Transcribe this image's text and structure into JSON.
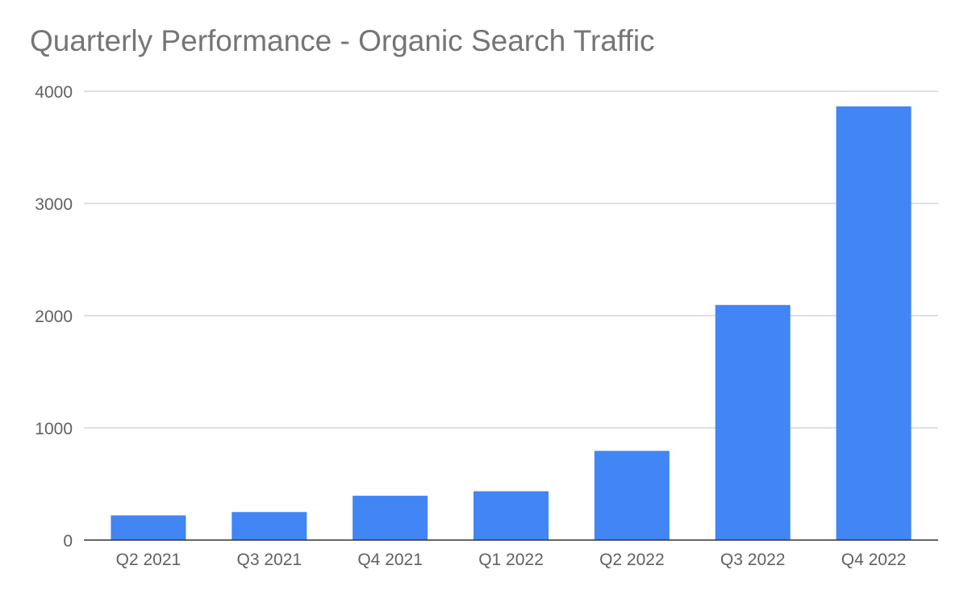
{
  "chart_data": {
    "type": "bar",
    "title": "Quarterly Performance - Organic Search Traffic",
    "xlabel": "",
    "ylabel": "",
    "categories": [
      "Q2 2021",
      "Q3 2021",
      "Q4 2021",
      "Q1 2022",
      "Q2 2022",
      "Q3 2022",
      "Q4 2022"
    ],
    "series": [
      {
        "values": [
          220,
          250,
          395,
          435,
          795,
          2095,
          3865
        ],
        "color": "#4285f4"
      }
    ],
    "ylim": [
      0,
      4000
    ],
    "yticks": [
      0,
      1000,
      2000,
      3000,
      4000
    ],
    "grid": true,
    "legend": "none"
  }
}
